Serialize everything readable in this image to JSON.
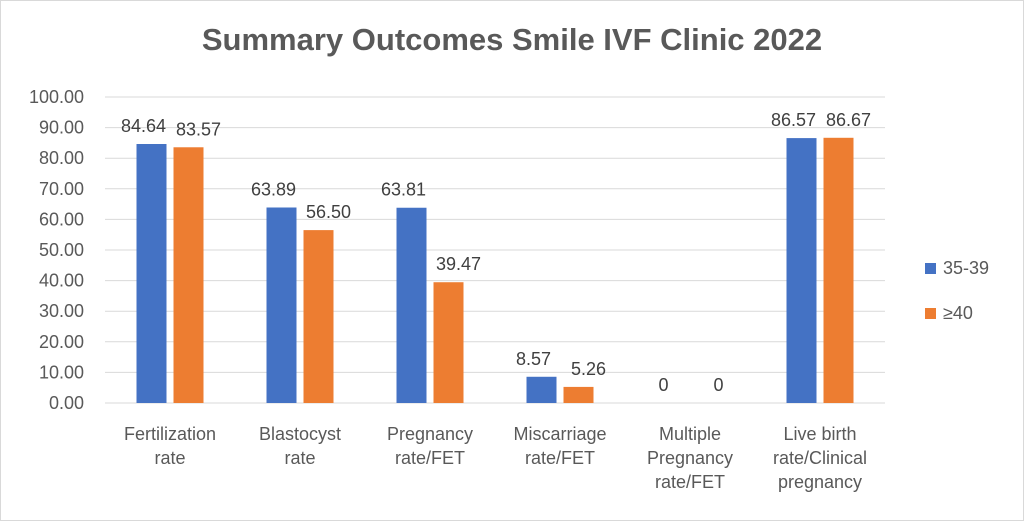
{
  "chart_data": {
    "type": "bar",
    "title": "Summary Outcomes Smile IVF Clinic 2022",
    "categories": [
      [
        "Fertilization",
        "rate"
      ],
      [
        "Blastocyst",
        "rate"
      ],
      [
        "Pregnancy",
        "rate/FET"
      ],
      [
        "Miscarriage",
        "rate/FET"
      ],
      [
        "Multiple",
        "Pregnancy",
        "rate/FET"
      ],
      [
        "Live birth",
        "rate/Clinical",
        "pregnancy"
      ]
    ],
    "series": [
      {
        "name": "35-39",
        "color": "#4472C4",
        "values": [
          84.64,
          63.89,
          63.81,
          8.57,
          0,
          86.57
        ],
        "labels": [
          "84.64",
          "63.89",
          "63.81",
          "8.57",
          "0",
          "86.57"
        ]
      },
      {
        "name": "≥40",
        "color": "#ED7D31",
        "values": [
          83.57,
          56.5,
          39.47,
          5.26,
          0,
          86.67
        ],
        "labels": [
          "83.57",
          "56.50",
          "39.47",
          "5.26",
          "0",
          "86.67"
        ]
      }
    ],
    "ylim": [
      0,
      100
    ],
    "yticks": [
      "0.00",
      "10.00",
      "20.00",
      "30.00",
      "40.00",
      "50.00",
      "60.00",
      "70.00",
      "80.00",
      "90.00",
      "100.00"
    ],
    "grid": true,
    "legend_position": "right"
  }
}
